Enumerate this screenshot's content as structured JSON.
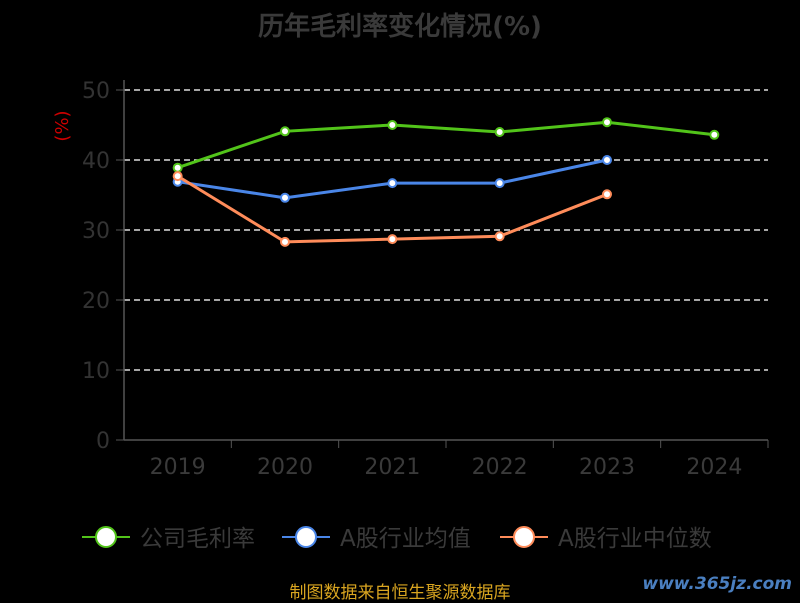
{
  "chart_data": {
    "type": "line",
    "title": "历年毛利率变化情况(%)",
    "ylabel": "(%)",
    "xlabel": "",
    "categories": [
      "2019",
      "2020",
      "2021",
      "2022",
      "2023",
      "2024"
    ],
    "ylim": [
      0,
      50
    ],
    "yticks": [
      0,
      10,
      20,
      30,
      40,
      50
    ],
    "grid": true,
    "legend_position": "bottom",
    "series": [
      {
        "name": "公司毛利率",
        "color": "#52c41a",
        "values": [
          38.9,
          44.1,
          45.0,
          44.0,
          45.4,
          43.6
        ]
      },
      {
        "name": "A股行业均值",
        "color": "#4a86e8",
        "values": [
          36.9,
          34.6,
          36.7,
          36.7,
          40.0,
          null
        ]
      },
      {
        "name": "A股行业中位数",
        "color": "#ff8c5a",
        "values": [
          37.7,
          28.3,
          28.7,
          29.1,
          35.1,
          null
        ]
      }
    ]
  },
  "footer": {
    "source": "制图数据来自恒生聚源数据库",
    "watermark": "www.365jz.com"
  }
}
